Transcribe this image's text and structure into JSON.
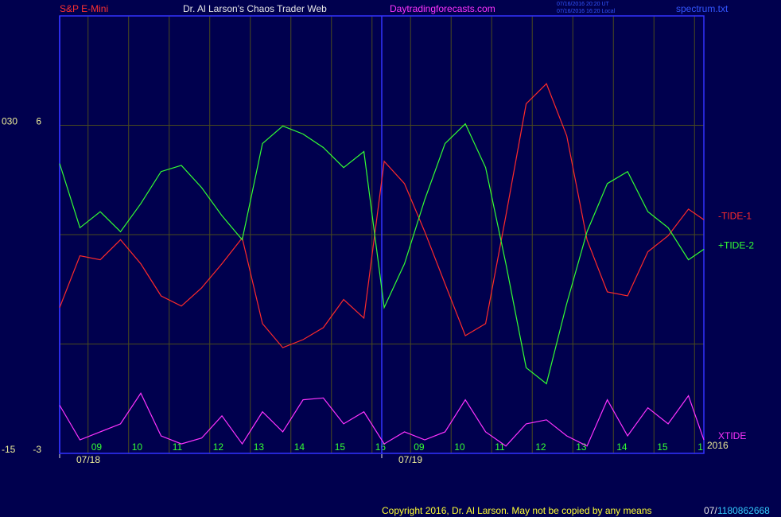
{
  "header": {
    "instrument": "S&P E-Mini",
    "site": "Dr. Al Larson's Chaos Trader Web",
    "url": "Daytradingforecasts.com",
    "stamp_ut": "07/16/2016 20:20 UT",
    "stamp_local": "07/16/2016 16:20 Local",
    "file": "spectrum.txt"
  },
  "footer": {
    "copyright": "Copyright 2016, Dr. Al Larson. May not be copied by any means",
    "code_prefix": "07/",
    "code": "1180862668"
  },
  "chart_data": {
    "type": "line",
    "x": [
      0,
      0.5,
      1,
      1.5,
      2,
      2.5,
      3,
      3.5,
      4,
      4.5,
      5,
      5.5,
      6,
      6.5,
      7,
      7.5,
      8,
      8.5,
      9,
      9.5,
      10,
      10.5,
      11,
      11.5,
      12,
      12.5,
      13,
      13.5,
      14,
      14.5,
      15,
      15.5,
      15.88
    ],
    "xlim": [
      0,
      15.88
    ],
    "xticks": [
      {
        "value": 0.7,
        "label": "09"
      },
      {
        "value": 1.7,
        "label": "10"
      },
      {
        "value": 2.7,
        "label": "11"
      },
      {
        "value": 3.7,
        "label": "12"
      },
      {
        "value": 4.7,
        "label": "13"
      },
      {
        "value": 5.7,
        "label": "14"
      },
      {
        "value": 6.7,
        "label": "15"
      },
      {
        "value": 7.7,
        "label": "16"
      },
      {
        "value": 8.65,
        "label": "09"
      },
      {
        "value": 9.65,
        "label": "10"
      },
      {
        "value": 10.65,
        "label": "11"
      },
      {
        "value": 11.65,
        "label": "12"
      },
      {
        "value": 12.65,
        "label": "13"
      },
      {
        "value": 13.65,
        "label": "14"
      },
      {
        "value": 14.65,
        "label": "15"
      },
      {
        "value": 15.65,
        "label": "1"
      }
    ],
    "dates": [
      {
        "value": 0,
        "label": "07/18"
      },
      {
        "value": 7.94,
        "label": "07/19"
      }
    ],
    "year": "2016",
    "ylim": [
      -3,
      9
    ],
    "yticks": [
      -3,
      6
    ],
    "ygrid": [
      0,
      3,
      6
    ],
    "y2lim": [
      -15,
      45
    ],
    "y2ticks": [
      {
        "value": 30,
        "label": "030"
      },
      -15
    ],
    "series": [
      {
        "name": "-TIDE-1",
        "color": "#ff2a2a",
        "values": [
          1.0,
          2.42,
          2.31,
          2.86,
          2.2,
          1.32,
          1.04,
          1.54,
          2.2,
          2.91,
          0.56,
          -0.1,
          0.12,
          0.45,
          1.22,
          0.71,
          5.01,
          4.4,
          3.08,
          1.65,
          0.23,
          0.56,
          3.52,
          6.59,
          7.14,
          5.71,
          2.86,
          1.43,
          1.32,
          2.53,
          2.97,
          3.7,
          3.41
        ]
      },
      {
        "name": "+TIDE-2",
        "color": "#33ff33",
        "values": [
          4.95,
          3.19,
          3.63,
          3.08,
          3.85,
          4.73,
          4.9,
          4.29,
          3.52,
          2.86,
          5.5,
          5.98,
          5.76,
          5.39,
          4.84,
          5.28,
          1.0,
          2.2,
          3.96,
          5.5,
          6.04,
          4.84,
          2.2,
          -0.65,
          -1.09,
          1.11,
          3.08,
          4.4,
          4.73,
          3.63,
          3.19,
          2.31,
          2.6
        ]
      },
      {
        "name": "XTIDE",
        "color": "#ff33ff",
        "values": [
          -1.68,
          -2.63,
          -2.41,
          -2.19,
          -1.35,
          -2.52,
          -2.74,
          -2.58,
          -1.97,
          -2.74,
          -1.86,
          -2.41,
          -1.53,
          -1.48,
          -2.19,
          -1.86,
          -2.74,
          -2.41,
          -2.63,
          -2.41,
          -1.53,
          -2.41,
          -2.8,
          -2.19,
          -2.08,
          -2.52,
          -2.8,
          -1.53,
          -2.52,
          -1.75,
          -2.19,
          -1.42,
          -2.63
        ]
      }
    ]
  }
}
